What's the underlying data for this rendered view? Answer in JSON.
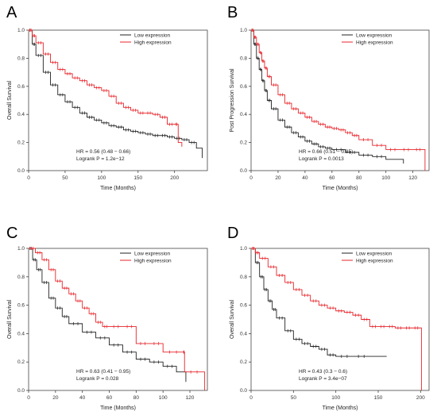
{
  "chart_data": [
    {
      "panel_letter": "A",
      "type": "line",
      "xlabel": "Time (Months)",
      "ylabel": "Overall Survival",
      "xlim": [
        0,
        245
      ],
      "ylim": [
        0,
        1
      ],
      "xticks": [
        0,
        50,
        100,
        150,
        200
      ],
      "yticks": [
        0.0,
        0.2,
        0.4,
        0.6,
        0.8,
        1.0
      ],
      "legend": [
        "Low expression",
        "High expression"
      ],
      "legend_position": "top-right",
      "stats": [
        "HR = 0.56 (0.48 − 0.66)",
        "Logrank P = 1.2e−12"
      ],
      "series": [
        {
          "name": "Low expression",
          "color": "#222222",
          "x": [
            0,
            5,
            10,
            20,
            30,
            40,
            50,
            60,
            70,
            80,
            90,
            100,
            110,
            120,
            130,
            140,
            150,
            160,
            170,
            180,
            190,
            200,
            210,
            220,
            230,
            238
          ],
          "y": [
            1.0,
            0.9,
            0.82,
            0.7,
            0.61,
            0.54,
            0.49,
            0.45,
            0.41,
            0.38,
            0.36,
            0.34,
            0.32,
            0.31,
            0.29,
            0.28,
            0.27,
            0.26,
            0.25,
            0.25,
            0.24,
            0.23,
            0.22,
            0.2,
            0.16,
            0.09
          ]
        },
        {
          "name": "High expression",
          "color": "#e8242a",
          "x": [
            0,
            5,
            10,
            20,
            30,
            40,
            50,
            60,
            70,
            80,
            90,
            100,
            110,
            120,
            130,
            140,
            150,
            160,
            170,
            180,
            190,
            200,
            205,
            210
          ],
          "y": [
            1.0,
            0.96,
            0.91,
            0.83,
            0.77,
            0.72,
            0.69,
            0.66,
            0.64,
            0.61,
            0.59,
            0.57,
            0.53,
            0.48,
            0.45,
            0.43,
            0.41,
            0.41,
            0.4,
            0.38,
            0.33,
            0.33,
            0.2,
            0.17
          ]
        }
      ]
    },
    {
      "panel_letter": "B",
      "type": "line",
      "xlabel": "Time (Months)",
      "ylabel": "Post Progression Survival",
      "xlim": [
        0,
        132
      ],
      "ylim": [
        0,
        1
      ],
      "xticks": [
        0,
        20,
        40,
        60,
        80,
        100,
        120
      ],
      "yticks": [
        0.0,
        0.2,
        0.4,
        0.6,
        0.8,
        1.0
      ],
      "legend": [
        "Low expression",
        "High expression"
      ],
      "legend_position": "top-right",
      "stats": [
        "HR = 0.66 (0.51 − 0.85)",
        "Logrank P = 0.0013"
      ],
      "series": [
        {
          "name": "Low expression",
          "color": "#222222",
          "x": [
            0,
            2,
            4,
            6,
            8,
            10,
            12,
            15,
            20,
            25,
            30,
            35,
            40,
            45,
            50,
            55,
            60,
            70,
            80,
            90,
            100,
            113
          ],
          "y": [
            1.0,
            0.9,
            0.8,
            0.72,
            0.64,
            0.57,
            0.5,
            0.44,
            0.36,
            0.31,
            0.27,
            0.24,
            0.21,
            0.19,
            0.17,
            0.16,
            0.15,
            0.13,
            0.11,
            0.1,
            0.08,
            0.05
          ]
        },
        {
          "name": "High expression",
          "color": "#e8242a",
          "x": [
            0,
            2,
            4,
            6,
            8,
            10,
            12,
            15,
            20,
            25,
            30,
            35,
            40,
            45,
            50,
            55,
            60,
            65,
            70,
            75,
            80,
            90,
            100,
            110,
            120,
            128,
            129
          ],
          "y": [
            1.0,
            0.95,
            0.9,
            0.84,
            0.78,
            0.73,
            0.67,
            0.61,
            0.54,
            0.48,
            0.44,
            0.41,
            0.38,
            0.35,
            0.33,
            0.31,
            0.3,
            0.29,
            0.27,
            0.25,
            0.22,
            0.18,
            0.15,
            0.15,
            0.15,
            0.15,
            0.0
          ]
        }
      ]
    },
    {
      "panel_letter": "C",
      "type": "line",
      "xlabel": "Time (Months)",
      "ylabel": "Overall Survival",
      "xlim": [
        0,
        133
      ],
      "ylim": [
        0,
        1
      ],
      "xticks": [
        0,
        20,
        40,
        60,
        80,
        100,
        120
      ],
      "yticks": [
        0.0,
        0.2,
        0.4,
        0.6,
        0.8,
        1.0
      ],
      "legend": [
        "Low expression",
        "High expression"
      ],
      "legend_position": "top-right",
      "stats": [
        "HR = 0.63 (0.41 − 0.95)",
        "Logrank P = 0.028"
      ],
      "series": [
        {
          "name": "Low expression",
          "color": "#222222",
          "x": [
            0,
            3,
            6,
            10,
            15,
            20,
            25,
            30,
            40,
            50,
            60,
            70,
            80,
            90,
            100,
            110,
            117
          ],
          "y": [
            1.0,
            0.92,
            0.85,
            0.76,
            0.65,
            0.58,
            0.52,
            0.47,
            0.41,
            0.37,
            0.32,
            0.27,
            0.22,
            0.2,
            0.17,
            0.13,
            0.06
          ]
        },
        {
          "name": "High expression",
          "color": "#e8242a",
          "x": [
            0,
            5,
            10,
            15,
            20,
            25,
            30,
            35,
            40,
            45,
            50,
            55,
            60,
            70,
            80,
            90,
            100,
            115,
            116,
            130,
            131
          ],
          "y": [
            1.0,
            0.97,
            0.92,
            0.85,
            0.77,
            0.72,
            0.68,
            0.63,
            0.58,
            0.54,
            0.48,
            0.45,
            0.45,
            0.45,
            0.33,
            0.33,
            0.27,
            0.27,
            0.13,
            0.13,
            0.0
          ]
        }
      ]
    },
    {
      "panel_letter": "D",
      "type": "line",
      "xlabel": "Time (Months)",
      "ylabel": "Overall Survival",
      "xlim": [
        0,
        210
      ],
      "ylim": [
        0,
        1
      ],
      "xticks": [
        0,
        50,
        100,
        150,
        200
      ],
      "yticks": [
        0.0,
        0.2,
        0.4,
        0.6,
        0.8,
        1.0
      ],
      "legend": [
        "Low expression",
        "High expression"
      ],
      "legend_position": "top-right",
      "stats": [
        "HR = 0.43 (0.3 − 0.6)",
        "Logrank P = 3.4e−07"
      ],
      "series": [
        {
          "name": "Low expression",
          "color": "#222222",
          "x": [
            0,
            5,
            10,
            15,
            20,
            25,
            30,
            40,
            50,
            60,
            70,
            80,
            90,
            100,
            120,
            140,
            160
          ],
          "y": [
            1.0,
            0.9,
            0.8,
            0.71,
            0.63,
            0.57,
            0.51,
            0.42,
            0.36,
            0.33,
            0.31,
            0.29,
            0.25,
            0.24,
            0.24,
            0.24,
            0.24
          ]
        },
        {
          "name": "High expression",
          "color": "#e8242a",
          "x": [
            0,
            5,
            10,
            20,
            30,
            40,
            50,
            60,
            70,
            80,
            90,
            100,
            110,
            120,
            130,
            140,
            150,
            160,
            170,
            180,
            190,
            200,
            201
          ],
          "y": [
            1.0,
            0.97,
            0.93,
            0.87,
            0.81,
            0.76,
            0.71,
            0.67,
            0.63,
            0.6,
            0.58,
            0.56,
            0.55,
            0.53,
            0.5,
            0.45,
            0.45,
            0.45,
            0.44,
            0.44,
            0.44,
            0.44,
            0.0
          ]
        }
      ]
    }
  ]
}
